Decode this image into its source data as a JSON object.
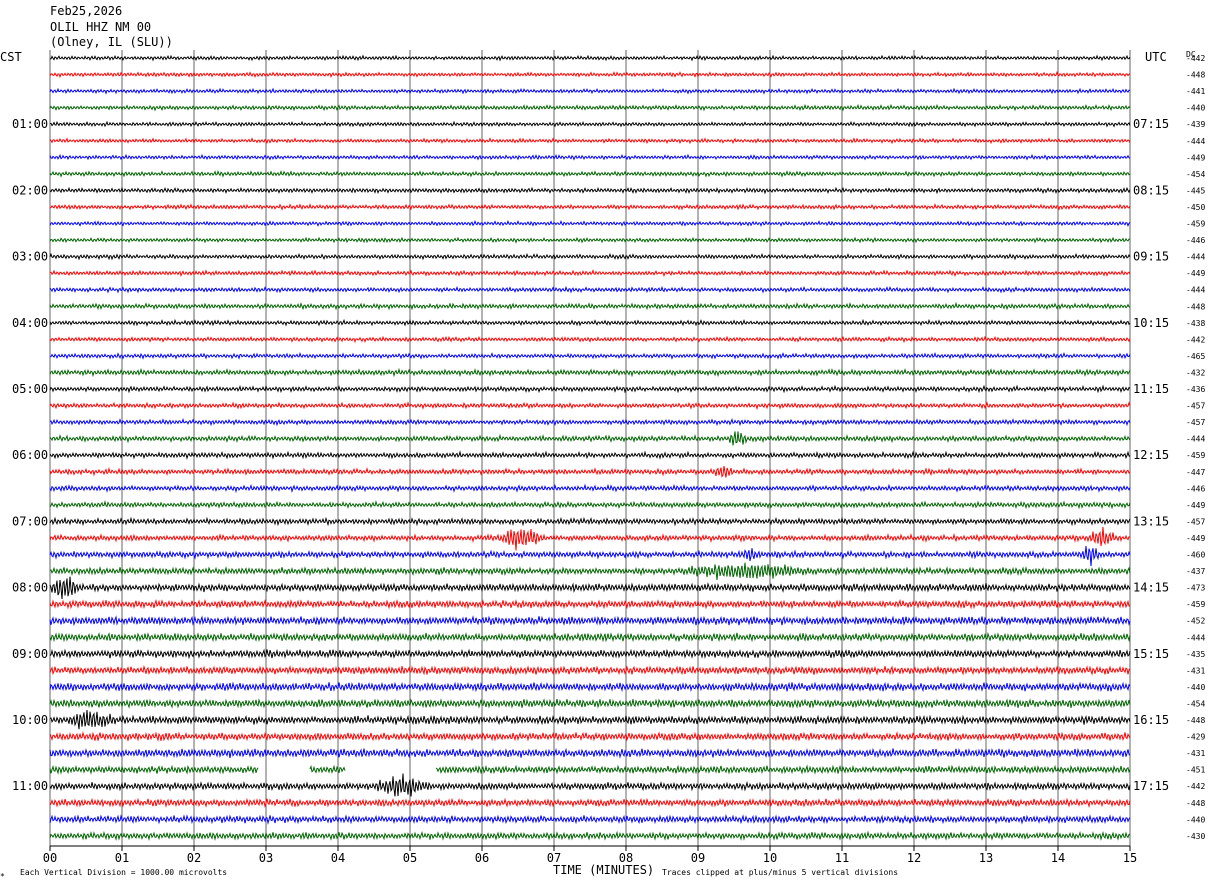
{
  "header": {
    "date": "Feb25,2026",
    "station": "OLIL HHZ NM 00",
    "location": "(Olney, IL (SLU))"
  },
  "left_tz": "CST",
  "right_tz": "UTC",
  "dc_label": "DC",
  "footer": {
    "scale": "Each Vertical Division = 1000.00 microvolts",
    "clip": "Traces clipped at plus/minus 5 vertical divisions",
    "corner": "*"
  },
  "colors": {
    "trace_cycle": [
      "#000000",
      "#ff0000",
      "#0000ff",
      "#006400"
    ],
    "grid": "#666666"
  },
  "chart_data": {
    "type": "line",
    "subtype": "helicorder",
    "xlabel": "TIME (MINUTES)",
    "x_ticks": [
      "00",
      "01",
      "02",
      "03",
      "04",
      "05",
      "06",
      "07",
      "08",
      "09",
      "10",
      "11",
      "12",
      "13",
      "14",
      "15"
    ],
    "xlim": [
      0,
      15
    ],
    "rows": 48,
    "left_hour_labels": [
      "01:00",
      "02:00",
      "03:00",
      "04:00",
      "05:00",
      "06:00",
      "07:00",
      "08:00",
      "09:00",
      "10:00",
      "11:00"
    ],
    "right_hour_labels": [
      "07:15",
      "08:15",
      "09:15",
      "10:15",
      "11:15",
      "12:15",
      "13:15",
      "14:15",
      "15:15",
      "16:15",
      "17:15"
    ],
    "dc_values": [
      "-442",
      "-448",
      "-441",
      "-440",
      "-439",
      "-444",
      "-449",
      "-454",
      "-445",
      "-450",
      "-459",
      "-446",
      "-444",
      "-449",
      "-444",
      "-448",
      "-438",
      "-442",
      "-465",
      "-432",
      "-436",
      "-457",
      "-457",
      "-444",
      "-459",
      "-447",
      "-446",
      "-449",
      "-457",
      "-449",
      "-460",
      "-437",
      "-473",
      "-459",
      "-452",
      "-444",
      "-435",
      "-431",
      "-440",
      "-454",
      "-448",
      "-429",
      "-431",
      "-451",
      "-442",
      "-448",
      "-440",
      "-430"
    ],
    "row_amplitude": [
      0.8,
      0.8,
      0.8,
      0.9,
      0.8,
      0.8,
      0.8,
      0.9,
      0.9,
      0.9,
      0.8,
      0.8,
      0.9,
      0.9,
      0.9,
      1.0,
      0.9,
      0.9,
      0.9,
      1.1,
      1.0,
      1.0,
      1.0,
      1.1,
      1.1,
      1.1,
      1.1,
      1.1,
      1.2,
      1.2,
      1.3,
      1.4,
      1.6,
      1.5,
      1.7,
      1.6,
      1.6,
      1.6,
      1.7,
      1.7,
      1.7,
      1.6,
      1.7,
      1.5,
      1.5,
      1.5,
      1.5,
      1.4
    ],
    "events": [
      {
        "row": 23,
        "start_min": 9.4,
        "end_min": 9.7,
        "amp": 3
      },
      {
        "row": 25,
        "start_min": 9.2,
        "end_min": 9.5,
        "amp": 2.5
      },
      {
        "row": 29,
        "start_min": 6.2,
        "end_min": 6.9,
        "amp": 5
      },
      {
        "row": 29,
        "start_min": 14.4,
        "end_min": 14.8,
        "amp": 4
      },
      {
        "row": 30,
        "start_min": 9.6,
        "end_min": 9.8,
        "amp": 2.5
      },
      {
        "row": 30,
        "start_min": 14.3,
        "end_min": 14.6,
        "amp": 3
      },
      {
        "row": 31,
        "start_min": 8.7,
        "end_min": 10.6,
        "amp": 2.5
      },
      {
        "row": 32,
        "start_min": 0.0,
        "end_min": 0.4,
        "amp": 4
      },
      {
        "row": 40,
        "start_min": 0.2,
        "end_min": 0.9,
        "amp": 2.5
      },
      {
        "row": 44,
        "start_min": 4.5,
        "end_min": 5.3,
        "amp": 3
      }
    ],
    "gaps": [
      {
        "row": 43,
        "start_min": 2.9,
        "end_min": 3.6
      },
      {
        "row": 43,
        "start_min": 4.1,
        "end_min": 5.35
      }
    ]
  }
}
